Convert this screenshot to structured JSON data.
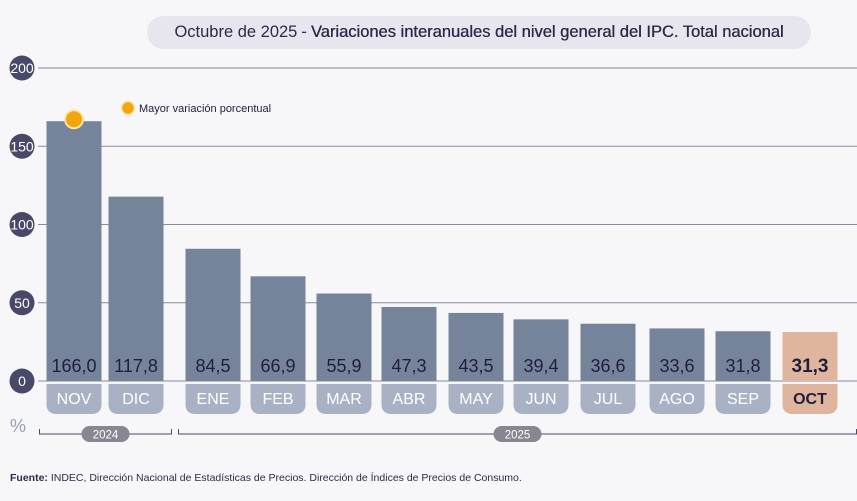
{
  "title": {
    "date": "Octubre de 2025",
    "separator": "-",
    "main": "Variaciones interanuales del nivel general del IPC. Total nacional"
  },
  "chart_data": {
    "type": "bar",
    "categories": [
      "NOV",
      "DIC",
      "ENE",
      "FEB",
      "MAR",
      "ABR",
      "MAY",
      "JUN",
      "JUL",
      "AGO",
      "SEP",
      "OCT"
    ],
    "values": [
      166.0,
      117.8,
      84.5,
      66.9,
      55.9,
      47.3,
      43.5,
      39.4,
      36.6,
      33.6,
      31.8,
      31.3
    ],
    "value_labels": [
      "166,0",
      "117,8",
      "84,5",
      "66,9",
      "55,9",
      "47,3",
      "43,5",
      "39,4",
      "36,6",
      "33,6",
      "31,8",
      "31,3"
    ],
    "ylim": [
      0,
      200
    ],
    "yticks": [
      "0",
      "50",
      "100",
      "150",
      "200"
    ],
    "ylabel": "%",
    "year_groups": [
      {
        "label": "2024",
        "from": 0,
        "to": 1
      },
      {
        "label": "2025",
        "from": 2,
        "to": 11
      }
    ],
    "highlight_index": 11,
    "max_marker_index": 0,
    "legend": "Mayor variación porcentual",
    "legend_position": "top-left",
    "grid": true,
    "colors": {
      "bar": "#75849b",
      "highlight_bar": "#dfb59d",
      "label_pill": "#a9b2c4",
      "highlight_pill": "#dfb59d",
      "marker": "#f2a50c",
      "tick_circle": "#484868",
      "text": "#1f1e3f"
    }
  },
  "footer": {
    "label": "Fuente:",
    "text": "INDEC, Dirección Nacional de Estadísticas de Precios. Dirección de Índices de Precios de Consumo."
  }
}
